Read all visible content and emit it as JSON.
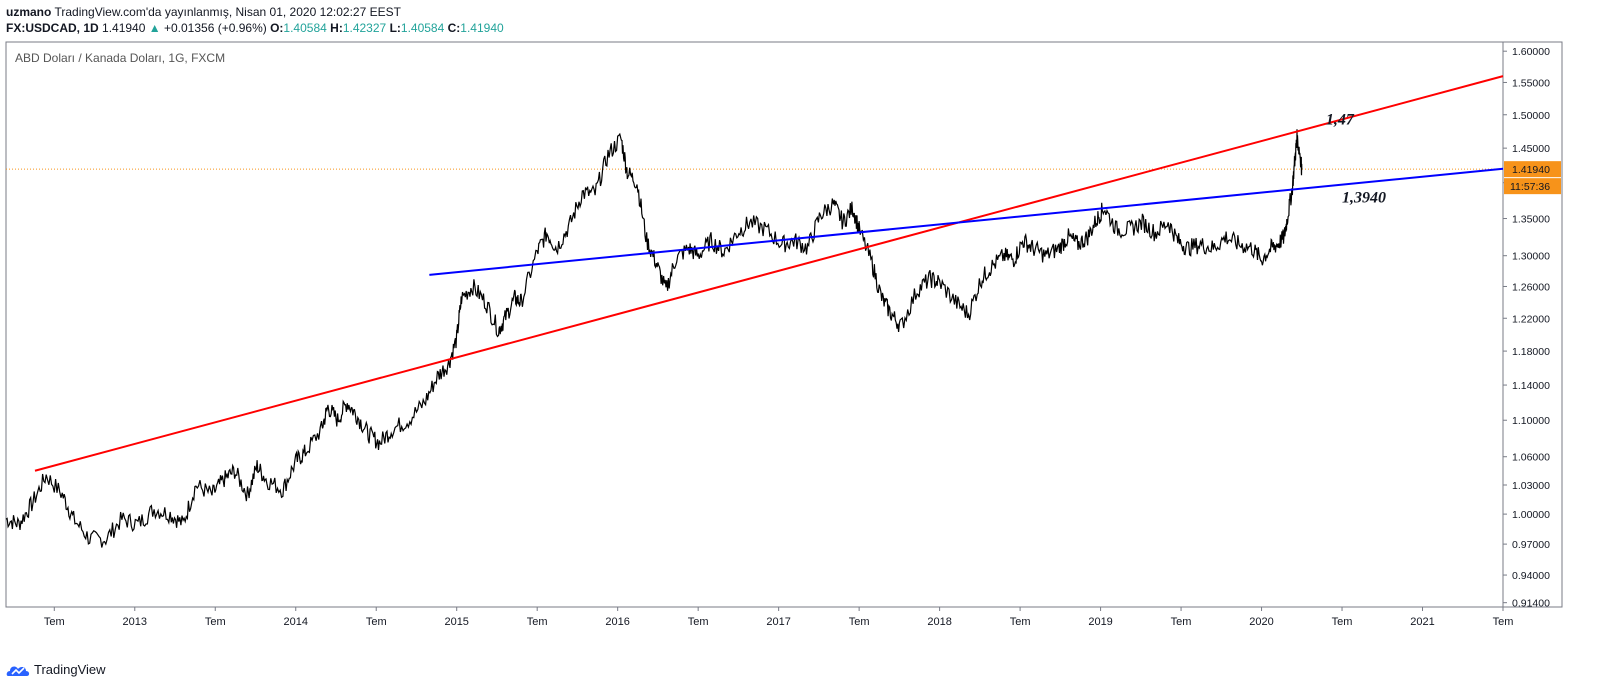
{
  "header": {
    "author": "uzmano",
    "published": "TradingView.com'da yayınlanmış, Nisan 01, 2020 12:02:27 EEST",
    "symbol": "FX:USDCAD, 1D",
    "last": "1.41940",
    "change": "+0.01356 (+0.96%)",
    "o_label": "O:",
    "o_value": "1.40584",
    "h_label": "H:",
    "h_value": "1.42327",
    "l_label": "L:",
    "l_value": "1.40584",
    "c_label": "C:",
    "c_value": "1.41940"
  },
  "footer": {
    "brand": "TradingView"
  },
  "colors": {
    "price_line": "#000000",
    "red_trend": "#ff0000",
    "blue_trend": "#0000ff",
    "last_price": "#f7931a",
    "text": "#131722"
  },
  "chart_data": {
    "type": "line",
    "title": "ABD Doları / Kanada Doları, 1G, FXCM",
    "x_tick_labels": [
      "Tem",
      "2013",
      "Tem",
      "2014",
      "Tem",
      "2015",
      "Tem",
      "2016",
      "Tem",
      "2017",
      "Tem",
      "2018",
      "Tem",
      "2019",
      "Tem",
      "2020",
      "Tem",
      "2021",
      "Tem"
    ],
    "x_ticks_years": [
      2012.5,
      2013.0,
      2013.5,
      2014.0,
      2014.5,
      2015.0,
      2015.5,
      2016.0,
      2016.5,
      2017.0,
      2017.5,
      2018.0,
      2018.5,
      2019.0,
      2019.5,
      2020.0,
      2020.5,
      2021.0,
      2021.5
    ],
    "y_tick_labels": [
      "1.60000",
      "1.55000",
      "1.50000",
      "1.45000",
      "1.40000",
      "1.35000",
      "1.30000",
      "1.26000",
      "1.22000",
      "1.18000",
      "1.14000",
      "1.10000",
      "1.06000",
      "1.03000",
      "1.00000",
      "0.97000",
      "0.94000",
      "0.91400"
    ],
    "y_ticks": [
      1.6,
      1.55,
      1.5,
      1.45,
      1.4,
      1.35,
      1.3,
      1.26,
      1.22,
      1.18,
      1.14,
      1.1,
      1.06,
      1.03,
      1.0,
      0.97,
      0.94,
      0.914
    ],
    "ylim": [
      0.91,
      1.615
    ],
    "xlim": [
      2012.2,
      2021.5
    ],
    "y_scale": "log",
    "series": [
      {
        "x": [
          2012.2,
          2012.28,
          2012.36,
          2012.45,
          2012.55,
          2012.62,
          2012.72,
          2012.82,
          2012.92,
          2013.02,
          2013.12,
          2013.22,
          2013.3,
          2013.38,
          2013.48,
          2013.55,
          2013.62,
          2013.7,
          2013.76,
          2013.82,
          2013.92,
          2014.0,
          2014.06,
          2014.16,
          2014.2,
          2014.26,
          2014.32,
          2014.38,
          2014.45,
          2014.52,
          2014.6,
          2014.7,
          2014.8,
          2014.88,
          2014.95,
          2015.0,
          2015.03,
          2015.1,
          2015.18,
          2015.26,
          2015.3,
          2015.36,
          2015.4,
          2015.5,
          2015.56,
          2015.62,
          2015.7,
          2015.78,
          2015.86,
          2015.94,
          2016.02,
          2016.06,
          2016.12,
          2016.18,
          2016.24,
          2016.3,
          2016.36,
          2016.44,
          2016.5,
          2016.58,
          2016.66,
          2016.74,
          2016.82,
          2016.92,
          2017.02,
          2017.1,
          2017.18,
          2017.26,
          2017.34,
          2017.4,
          2017.46,
          2017.5,
          2017.58,
          2017.64,
          2017.7,
          2017.76,
          2017.86,
          2017.94,
          2018.0,
          2018.1,
          2018.18,
          2018.26,
          2018.32,
          2018.4,
          2018.46,
          2018.52,
          2018.58,
          2018.66,
          2018.74,
          2018.8,
          2018.86,
          2018.92,
          2018.98,
          2019.02,
          2019.1,
          2019.18,
          2019.26,
          2019.34,
          2019.42,
          2019.48,
          2019.54,
          2019.62,
          2019.7,
          2019.78,
          2019.86,
          2019.94,
          2020.0,
          2020.06,
          2020.1,
          2020.14,
          2020.16,
          2020.19,
          2020.21,
          2020.22,
          2020.24,
          2020.25
        ],
        "y": [
          0.995,
          0.99,
          1.01,
          1.04,
          1.02,
          0.995,
          0.975,
          0.975,
          0.995,
          0.99,
          1.005,
          1.0,
          0.99,
          1.03,
          1.02,
          1.035,
          1.045,
          1.02,
          1.05,
          1.035,
          1.025,
          1.055,
          1.065,
          1.09,
          1.115,
          1.1,
          1.12,
          1.105,
          1.085,
          1.075,
          1.09,
          1.1,
          1.12,
          1.15,
          1.165,
          1.195,
          1.245,
          1.26,
          1.24,
          1.205,
          1.22,
          1.245,
          1.24,
          1.305,
          1.33,
          1.31,
          1.34,
          1.385,
          1.385,
          1.44,
          1.465,
          1.415,
          1.4,
          1.32,
          1.29,
          1.255,
          1.295,
          1.31,
          1.3,
          1.32,
          1.305,
          1.33,
          1.345,
          1.335,
          1.315,
          1.32,
          1.31,
          1.355,
          1.37,
          1.345,
          1.365,
          1.335,
          1.29,
          1.245,
          1.225,
          1.21,
          1.255,
          1.27,
          1.265,
          1.24,
          1.225,
          1.27,
          1.285,
          1.3,
          1.295,
          1.32,
          1.31,
          1.3,
          1.31,
          1.325,
          1.315,
          1.325,
          1.35,
          1.365,
          1.335,
          1.335,
          1.345,
          1.33,
          1.345,
          1.32,
          1.31,
          1.315,
          1.31,
          1.325,
          1.315,
          1.31,
          1.295,
          1.31,
          1.315,
          1.325,
          1.35,
          1.39,
          1.44,
          1.465,
          1.44,
          1.4194
        ]
      }
    ],
    "trend_lines": [
      {
        "color": "red",
        "x": [
          2012.38,
          2021.5
        ],
        "y": [
          1.045,
          1.56
        ]
      },
      {
        "color": "blue",
        "x": [
          2014.83,
          2021.5
        ],
        "y": [
          1.275,
          1.42
        ]
      }
    ],
    "annotations": [
      {
        "text": "1,47",
        "x": 2020.4,
        "y": 1.485
      },
      {
        "text": "1,3940",
        "x": 2020.5,
        "y": 1.372
      }
    ],
    "last_price_line": {
      "value": 1.4194,
      "label": "1.41940",
      "countdown": "11:57:36"
    },
    "grid": false,
    "legend": "none"
  }
}
